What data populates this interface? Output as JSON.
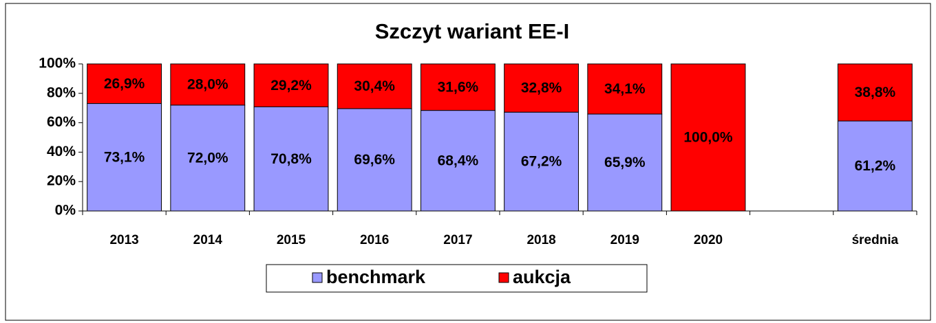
{
  "chart_data": {
    "type": "stacked_bar",
    "title": "Szczyt wariant  EE-I",
    "categories": [
      "2013",
      "2014",
      "2015",
      "2016",
      "2017",
      "2018",
      "2019",
      "2020",
      null,
      "średnia"
    ],
    "series": [
      {
        "name": "benchmark",
        "color": "#9999ff",
        "values": [
          73.1,
          72.0,
          70.8,
          69.6,
          68.4,
          67.2,
          65.9,
          0,
          null,
          61.2
        ],
        "value_labels": [
          "73,1%",
          "72,0%",
          "70,8%",
          "69,6%",
          "68,4%",
          "67,2%",
          "65,9%",
          null,
          null,
          "61,2%"
        ]
      },
      {
        "name": "aukcja",
        "color": "#ff0000",
        "values": [
          26.9,
          28.0,
          29.2,
          30.4,
          31.6,
          32.8,
          34.1,
          100.0,
          null,
          38.8
        ],
        "value_labels": [
          "26,9%",
          "28,0%",
          "29,2%",
          "30,4%",
          "31,6%",
          "32,8%",
          "34,1%",
          "100,0%",
          null,
          "38,8%"
        ]
      }
    ],
    "ylim": [
      0,
      100
    ],
    "yticks": [
      {
        "value": 0,
        "label": "0%"
      },
      {
        "value": 20,
        "label": "20%"
      },
      {
        "value": 40,
        "label": "40%"
      },
      {
        "value": 60,
        "label": "60%"
      },
      {
        "value": 80,
        "label": "80%"
      },
      {
        "value": 100,
        "label": "100%"
      }
    ],
    "grid": false,
    "legend": "bottom"
  }
}
